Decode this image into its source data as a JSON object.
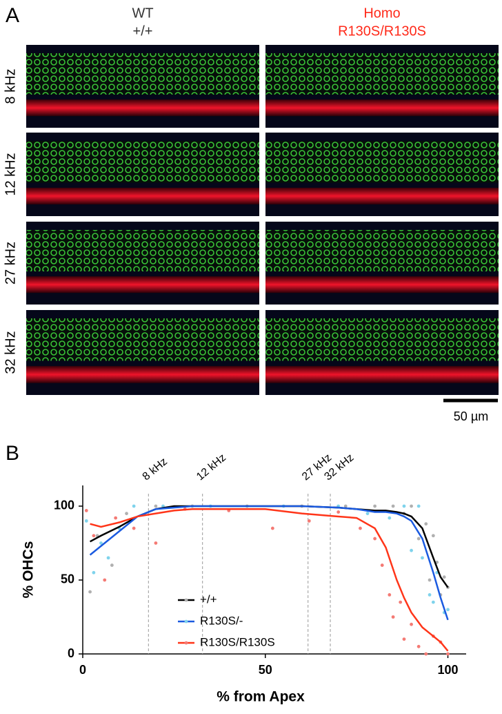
{
  "panel_a": {
    "label": "A",
    "columns": [
      {
        "title": "WT",
        "subtitle": "+/+",
        "color": "#333333"
      },
      {
        "title": "Homo",
        "subtitle": "R130S/R130S",
        "color": "#ff2a1a"
      }
    ],
    "rows": [
      "8 kHz",
      "12 kHz",
      "27 kHz",
      "32 kHz"
    ],
    "scale_bar": "50 µm"
  },
  "chart_data": {
    "type": "line",
    "panel_label": "B",
    "x_label": "% from Apex",
    "y_label": "% OHCs",
    "xlim": [
      0,
      105
    ],
    "ylim": [
      0,
      114
    ],
    "xticks": [
      0,
      50,
      100
    ],
    "yticks": [
      0,
      50,
      100
    ],
    "annotations": [
      {
        "x": 18,
        "label": "8 kHz"
      },
      {
        "x": 32.8,
        "label": "12 kHz"
      },
      {
        "x": 61.7,
        "label": "27 kHz"
      },
      {
        "x": 67.8,
        "label": "32 kHz"
      }
    ],
    "x": [
      2,
      5,
      10,
      15,
      20,
      25,
      30,
      40,
      50,
      60,
      70,
      75,
      80,
      83,
      86,
      88,
      90,
      93,
      96,
      98,
      100
    ],
    "series": [
      {
        "name": "+/+",
        "color": "#000000",
        "point_color": "#b0b0b0",
        "values": [
          76,
          80,
          86,
          93,
          98,
          100,
          100,
          100,
          100,
          100,
          99,
          98,
          97,
          97,
          96,
          95,
          93,
          85,
          65,
          52,
          45
        ],
        "point_x": [
          2,
          4,
          8,
          12,
          20,
          30,
          45,
          60,
          72,
          80,
          85,
          88,
          90,
          92,
          94,
          95,
          96,
          97,
          98,
          99,
          100
        ],
        "point_values": [
          42,
          80,
          60,
          95,
          100,
          100,
          100,
          100,
          100,
          100,
          100,
          95,
          100,
          78,
          88,
          50,
          80,
          62,
          40,
          52,
          45
        ]
      },
      {
        "name": "R130S/-",
        "color": "#1a5ae0",
        "point_color": "#7fd3ec",
        "values": [
          67,
          73,
          83,
          93,
          98,
          99,
          100,
          100,
          100,
          100,
          99,
          98,
          96,
          96,
          95,
          93,
          90,
          78,
          55,
          38,
          23
        ],
        "point_x": [
          1,
          3,
          5,
          7,
          10,
          14,
          22,
          35,
          55,
          70,
          78,
          84,
          88,
          90,
          92,
          93,
          95,
          96,
          97,
          99,
          100
        ],
        "point_values": [
          90,
          55,
          75,
          65,
          85,
          100,
          100,
          100,
          100,
          100,
          95,
          92,
          100,
          70,
          100,
          65,
          40,
          35,
          55,
          28,
          30
        ]
      },
      {
        "name": "R130S/R130S",
        "color": "#ff3519",
        "point_color": "#f47a74",
        "values": [
          88,
          86,
          89,
          93,
          95,
          97,
          98,
          98,
          98,
          95,
          93,
          92,
          85,
          72,
          50,
          38,
          28,
          18,
          12,
          8,
          2
        ],
        "point_x": [
          1,
          3,
          6,
          9,
          14,
          20,
          28,
          40,
          52,
          62,
          70,
          76,
          80,
          82,
          84,
          85,
          87,
          88,
          90,
          92,
          94,
          96,
          98,
          100
        ],
        "point_values": [
          97,
          80,
          50,
          92,
          85,
          75,
          98,
          97,
          85,
          90,
          96,
          85,
          78,
          60,
          40,
          25,
          35,
          10,
          20,
          5,
          0,
          12,
          8,
          0
        ]
      }
    ],
    "legend": "lower center"
  }
}
